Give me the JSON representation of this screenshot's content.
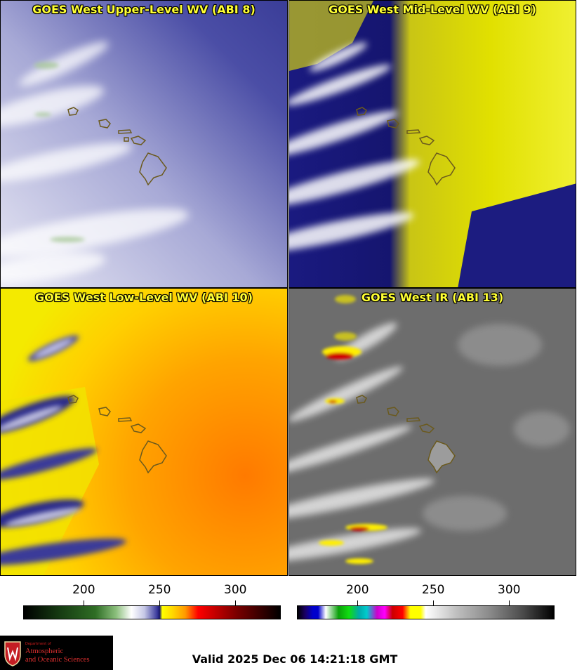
{
  "panels": [
    {
      "title": "GOES West Upper-Level WV (ABI 8)"
    },
    {
      "title": "GOES West Mid-Level WV (ABI 9)"
    },
    {
      "title": "GOES West Low-Level WV (ABI 10)"
    },
    {
      "title": "GOES West IR (ABI 13)"
    }
  ],
  "colorbars": {
    "ticks": [
      "200",
      "250",
      "300"
    ],
    "tick_values": [
      200,
      250,
      300
    ],
    "range": [
      160,
      330
    ]
  },
  "logo": {
    "line1": "Department of",
    "line2": "Atmospheric",
    "line3": "and Oceanic Sciences"
  },
  "valid_time": "Valid 2025 Dec 06 14:21:18 GMT"
}
